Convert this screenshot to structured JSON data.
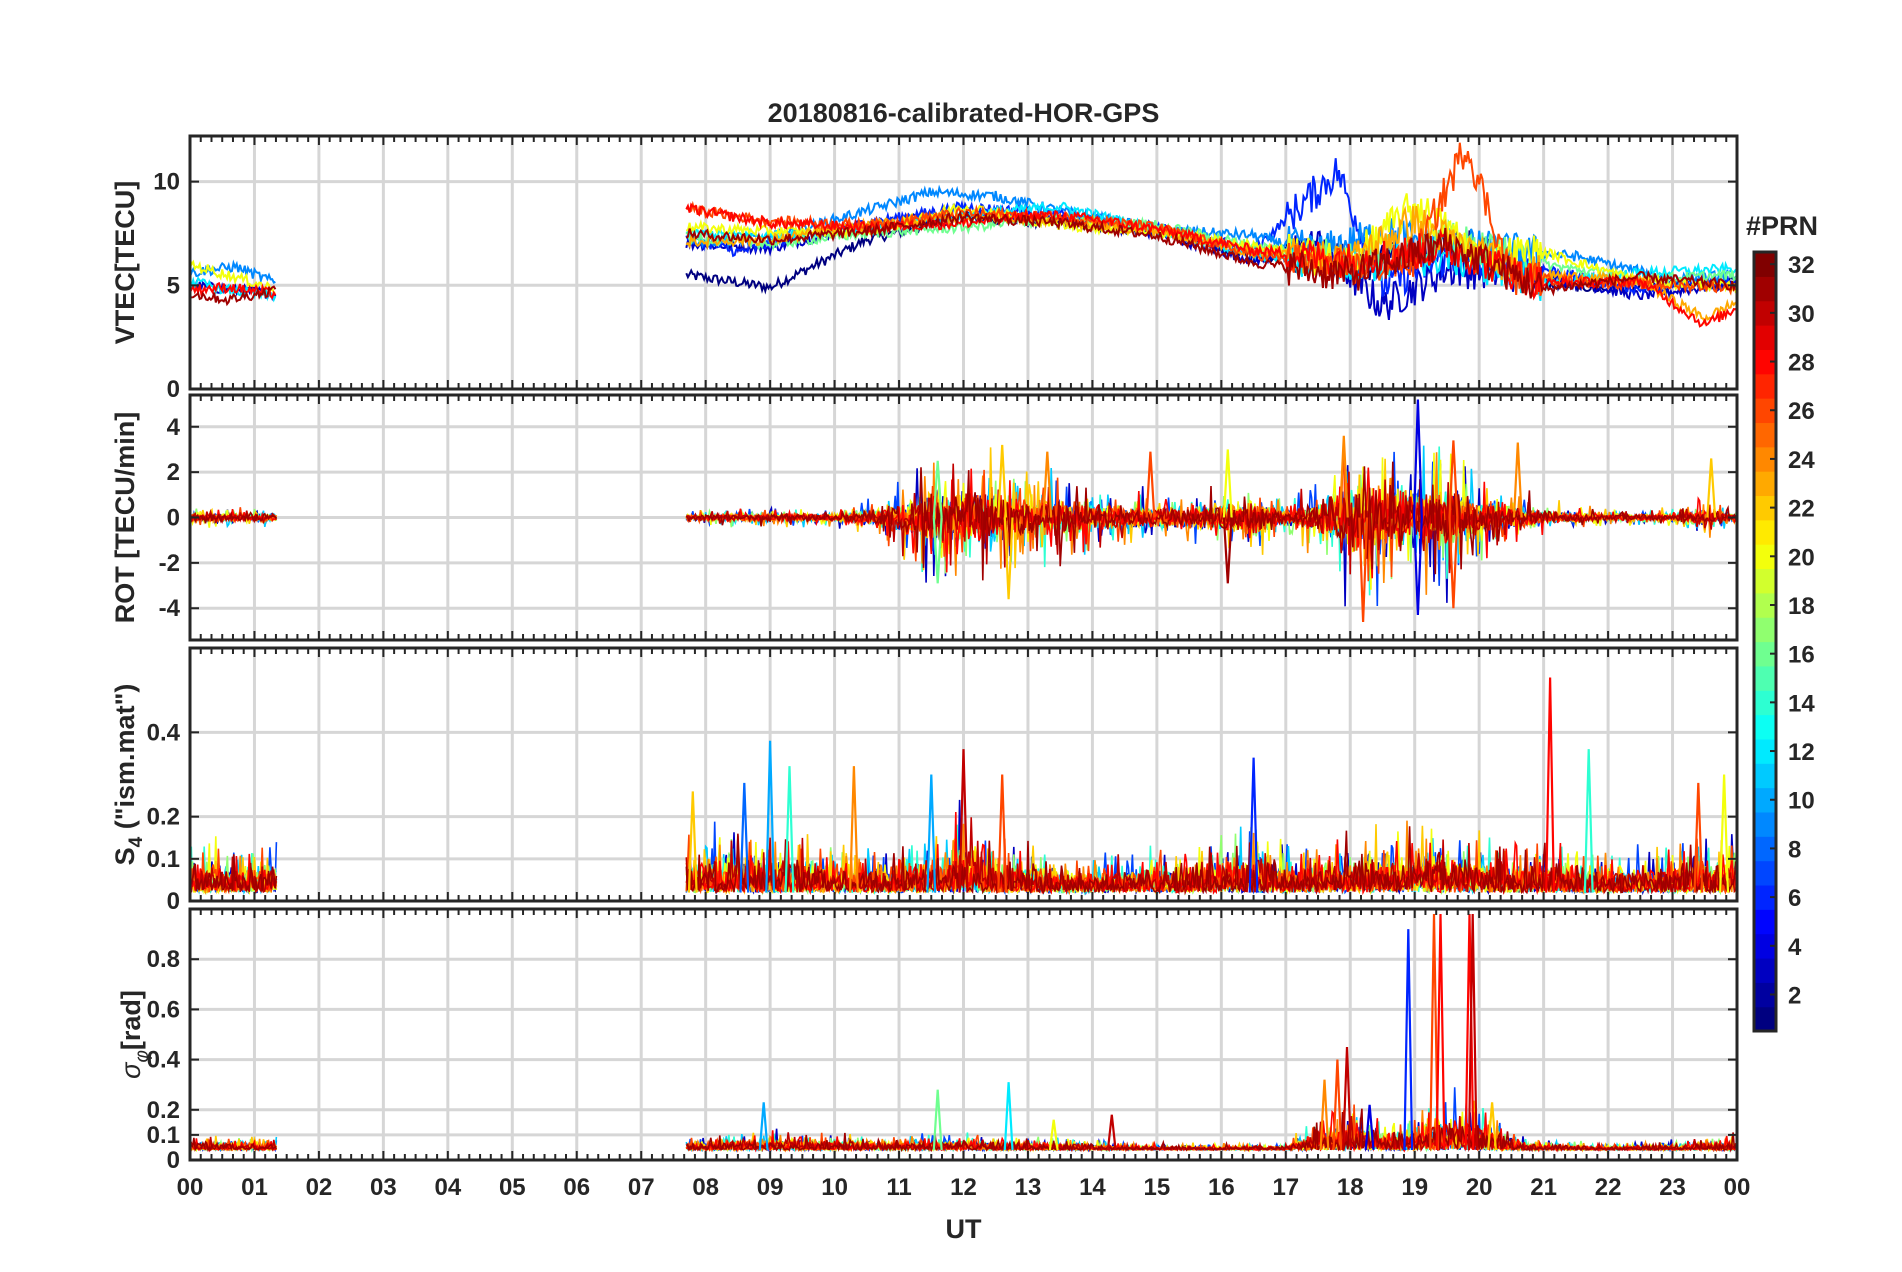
{
  "chart_data": {
    "type": "line",
    "title": "20180816-calibrated-HOR-GPS",
    "xlabel": "UT",
    "x_tick_labels": [
      "00",
      "01",
      "02",
      "03",
      "04",
      "05",
      "06",
      "07",
      "08",
      "09",
      "10",
      "11",
      "12",
      "13",
      "14",
      "15",
      "16",
      "17",
      "18",
      "19",
      "20",
      "21",
      "22",
      "23",
      "00"
    ],
    "xlim_hours": [
      0,
      24
    ],
    "grid": true,
    "colorbar": {
      "title": "#PRN",
      "range": [
        1,
        32
      ],
      "tick_values": [
        2,
        4,
        6,
        8,
        10,
        12,
        14,
        16,
        18,
        20,
        22,
        24,
        26,
        28,
        30,
        32
      ],
      "tick_labels": [
        "2",
        "4",
        "6",
        "8",
        "10",
        "12",
        "14",
        "16",
        "18",
        "20",
        "22",
        "24",
        "26",
        "28",
        "30",
        "32"
      ],
      "colormap": "jet",
      "placement": "right"
    },
    "data_gap_hours": [
      1.35,
      7.7
    ],
    "panels": [
      {
        "id": "vtec",
        "ylabel": "VTEC[TECU]",
        "ylim": [
          0,
          12.2
        ],
        "yticks": [
          0,
          5,
          10
        ],
        "ytick_labels": [
          "0",
          "5",
          "10"
        ],
        "type": "line",
        "series": [
          {
            "prn": 1,
            "x": [
              7.7,
              9.0,
              10.5,
              12.0,
              13.5,
              15.0,
              16.5,
              17.5,
              18.2,
              19.0,
              20.0,
              21.0,
              22.0,
              23.0,
              24.0
            ],
            "y": [
              5.5,
              4.9,
              7.2,
              8.3,
              8.0,
              7.6,
              6.3,
              6.6,
              5.8,
              6.6,
              6.9,
              5.1,
              4.8,
              5.0,
              5.2
            ]
          },
          {
            "prn": 3,
            "x": [
              0.0,
              0.6,
              1.35,
              7.7,
              9.0,
              10.5,
              12.0,
              13.5,
              15.0,
              16.5,
              17.5,
              18.5,
              19.5,
              21.0,
              22.5,
              24.0
            ],
            "y": [
              5.0,
              4.8,
              4.6,
              7.0,
              6.8,
              7.9,
              8.5,
              8.2,
              7.5,
              6.2,
              7.0,
              4.0,
              5.8,
              5.4,
              4.5,
              5.1
            ]
          },
          {
            "prn": 6,
            "x": [
              7.7,
              8.5,
              9.5,
              10.5,
              12.0,
              13.5,
              15.0,
              16.5,
              17.8,
              18.5,
              19.5,
              21.0,
              22.5,
              24.0
            ],
            "y": [
              7.3,
              6.6,
              7.4,
              8.0,
              8.8,
              8.4,
              7.8,
              6.7,
              10.5,
              5.0,
              6.4,
              5.8,
              4.8,
              5.3
            ]
          },
          {
            "prn": 9,
            "x": [
              0.0,
              0.7,
              1.35,
              7.7,
              9.0,
              10.5,
              11.5,
              12.5,
              13.5,
              15.0,
              16.5,
              17.5,
              18.5,
              20.0,
              21.5,
              23.0,
              24.0
            ],
            "y": [
              5.6,
              5.9,
              5.1,
              7.1,
              7.3,
              8.6,
              9.5,
              9.3,
              8.6,
              7.7,
              7.4,
              6.6,
              7.5,
              6.8,
              6.4,
              5.3,
              5.5
            ]
          },
          {
            "prn": 12,
            "x": [
              0.0,
              0.7,
              1.35,
              7.7,
              9.0,
              10.5,
              12.0,
              13.5,
              15.0,
              16.5,
              18.0,
              19.5,
              21.0,
              22.5,
              24.0
            ],
            "y": [
              5.2,
              4.7,
              4.5,
              7.5,
              7.4,
              7.7,
              8.4,
              8.8,
              7.7,
              6.5,
              5.9,
              6.4,
              5.1,
              5.6,
              5.8
            ]
          },
          {
            "prn": 16,
            "x": [
              7.7,
              9.0,
              10.5,
              12.0,
              13.5,
              15.0,
              16.5,
              18.0,
              19.5,
              21.0,
              22.5,
              24.0
            ],
            "y": [
              7.3,
              7.0,
              7.5,
              7.8,
              8.2,
              7.9,
              6.9,
              6.3,
              7.2,
              6.0,
              5.3,
              5.5
            ]
          },
          {
            "prn": 20,
            "x": [
              0.0,
              0.7,
              1.35,
              7.7,
              9.0,
              10.5,
              12.0,
              13.5,
              15.0,
              16.5,
              18.0,
              19.0,
              20.0,
              21.0,
              22.5,
              24.0
            ],
            "y": [
              6.0,
              5.4,
              4.8,
              7.8,
              7.6,
              7.6,
              8.8,
              7.9,
              7.6,
              6.9,
              6.1,
              8.9,
              6.5,
              6.6,
              5.2,
              4.9
            ]
          },
          {
            "prn": 23,
            "x": [
              7.7,
              9.0,
              10.5,
              12.0,
              13.5,
              15.0,
              16.5,
              18.0,
              19.0,
              20.0,
              21.0,
              22.5,
              23.5,
              24.0
            ],
            "y": [
              7.1,
              7.2,
              7.9,
              8.3,
              8.1,
              7.6,
              6.6,
              6.2,
              8.1,
              6.4,
              5.5,
              5.2,
              3.4,
              4.2
            ]
          },
          {
            "prn": 26,
            "x": [
              7.7,
              9.0,
              10.5,
              12.0,
              13.5,
              15.0,
              16.5,
              18.0,
              19.0,
              19.8,
              20.5,
              22.0,
              24.0
            ],
            "y": [
              8.7,
              8.1,
              7.9,
              8.5,
              8.3,
              7.8,
              6.5,
              5.8,
              6.2,
              11.8,
              5.4,
              5.1,
              4.9
            ]
          },
          {
            "prn": 28,
            "x": [
              0.0,
              0.6,
              1.35,
              7.7,
              9.0,
              10.5,
              12.0,
              13.2,
              14.0,
              15.0,
              16.5,
              18.0,
              19.5,
              21.0,
              22.5,
              23.5,
              24.0
            ],
            "y": [
              4.8,
              4.9,
              4.6,
              8.7,
              8.0,
              7.8,
              8.0,
              8.4,
              8.2,
              7.7,
              6.7,
              6.2,
              6.8,
              5.1,
              5.2,
              3.1,
              3.9
            ]
          },
          {
            "prn": 31,
            "x": [
              0.0,
              0.6,
              1.35,
              7.7,
              9.0,
              10.5,
              12.0,
              13.5,
              15.0,
              16.5,
              18.0,
              19.5,
              21.0,
              22.5,
              24.0
            ],
            "y": [
              4.6,
              4.3,
              4.8,
              7.5,
              7.2,
              7.6,
              8.3,
              8.0,
              7.4,
              6.1,
              5.5,
              7.0,
              4.8,
              5.4,
              5.0
            ]
          }
        ]
      },
      {
        "id": "rot",
        "ylabel": "ROT [TECU/min]",
        "ylim": [
          -5.4,
          5.4
        ],
        "yticks": [
          -4,
          -2,
          0,
          2,
          4
        ],
        "ytick_labels": [
          "-4",
          "-2",
          "0",
          "2",
          "4"
        ],
        "type": "line",
        "segments": [
          [
            0,
            1.35
          ],
          [
            7.7,
            24
          ]
        ],
        "noise_profile": {
          "hours": [
            0,
            1.35,
            7.7,
            9,
            10,
            10.5,
            11,
            11.5,
            12,
            12.5,
            13,
            13.5,
            14,
            15,
            16,
            16.5,
            17,
            17.5,
            18,
            18.5,
            19,
            19.5,
            20,
            20.5,
            21,
            22,
            23,
            23.5,
            24
          ],
          "amplitude_tecu_per_min": [
            0.35,
            0.35,
            0.25,
            0.35,
            0.3,
            0.6,
            1.2,
            2.4,
            2.1,
            2.4,
            1.6,
            1.7,
            1.2,
            0.9,
            1.1,
            1.8,
            0.7,
            1.4,
            3.0,
            2.8,
            2.4,
            2.6,
            1.7,
            1.1,
            0.6,
            0.3,
            0.3,
            0.8,
            0.2
          ]
        },
        "spikes": [
          {
            "x": 11.6,
            "y": 2.5,
            "prn": 16
          },
          {
            "x": 11.6,
            "y": -2.9,
            "prn": 16
          },
          {
            "x": 12.6,
            "y": 3.2,
            "prn": 22
          },
          {
            "x": 12.7,
            "y": -3.6,
            "prn": 22
          },
          {
            "x": 13.3,
            "y": 2.9,
            "prn": 24
          },
          {
            "x": 14.9,
            "y": 2.9,
            "prn": 26
          },
          {
            "x": 16.1,
            "y": 3.0,
            "prn": 20
          },
          {
            "x": 16.1,
            "y": -2.9,
            "prn": 31
          },
          {
            "x": 17.9,
            "y": 3.6,
            "prn": 24
          },
          {
            "x": 18.2,
            "y": -4.6,
            "prn": 26
          },
          {
            "x": 19.05,
            "y": 5.2,
            "prn": 4
          },
          {
            "x": 19.05,
            "y": -4.3,
            "prn": 4
          },
          {
            "x": 19.6,
            "y": 3.4,
            "prn": 26
          },
          {
            "x": 19.6,
            "y": -4.0,
            "prn": 26
          },
          {
            "x": 20.6,
            "y": 3.3,
            "prn": 24
          },
          {
            "x": 23.6,
            "y": 2.6,
            "prn": 22
          }
        ]
      },
      {
        "id": "s4",
        "ylabel": "S4 (\"ism.mat\")",
        "ylim": [
          0,
          0.6
        ],
        "yticks": [
          0,
          0.1,
          0.2,
          0.4
        ],
        "ytick_labels": [
          "0",
          "0.1",
          "0.2",
          "0.4"
        ],
        "type": "line",
        "segments": [
          [
            0,
            1.35
          ],
          [
            7.7,
            24
          ]
        ],
        "noise_profile": {
          "hours": [
            0,
            1.35,
            7.7,
            8.5,
            9.5,
            10.5,
            11.5,
            12,
            12.5,
            13,
            14,
            15,
            16,
            16.5,
            17,
            18,
            19,
            20,
            21,
            22,
            23,
            24
          ],
          "amplitude": [
            0.09,
            0.09,
            0.12,
            0.12,
            0.1,
            0.08,
            0.1,
            0.16,
            0.1,
            0.09,
            0.07,
            0.08,
            0.1,
            0.12,
            0.09,
            0.1,
            0.13,
            0.1,
            0.09,
            0.07,
            0.09,
            0.11
          ]
        },
        "spikes": [
          {
            "x": 7.8,
            "y": 0.26,
            "prn": 22
          },
          {
            "x": 8.6,
            "y": 0.28,
            "prn": 8
          },
          {
            "x": 9.0,
            "y": 0.38,
            "prn": 10
          },
          {
            "x": 9.3,
            "y": 0.32,
            "prn": 14
          },
          {
            "x": 10.3,
            "y": 0.32,
            "prn": 24
          },
          {
            "x": 11.5,
            "y": 0.3,
            "prn": 10
          },
          {
            "x": 12.0,
            "y": 0.36,
            "prn": 30
          },
          {
            "x": 12.6,
            "y": 0.3,
            "prn": 26
          },
          {
            "x": 16.5,
            "y": 0.34,
            "prn": 6
          },
          {
            "x": 21.1,
            "y": 0.53,
            "prn": 28
          },
          {
            "x": 21.7,
            "y": 0.36,
            "prn": 14
          },
          {
            "x": 23.4,
            "y": 0.28,
            "prn": 26
          },
          {
            "x": 23.8,
            "y": 0.3,
            "prn": 20
          }
        ]
      },
      {
        "id": "sigma_phi",
        "ylabel": "σφ[rad]",
        "ylim": [
          0,
          1.0
        ],
        "yticks": [
          0,
          0.1,
          0.2,
          0.4,
          0.6,
          0.8
        ],
        "ytick_labels": [
          "0",
          "0.1",
          "0.2",
          "0.4",
          "0.6",
          "0.8"
        ],
        "type": "line",
        "segments": [
          [
            0,
            1.35
          ],
          [
            7.7,
            24
          ]
        ],
        "baseline": 0.04,
        "noise_profile": {
          "hours": [
            0,
            1.35,
            7.7,
            9,
            10,
            11,
            12,
            13,
            14,
            15,
            16,
            17,
            17.5,
            18,
            18.5,
            19,
            19.5,
            20,
            20.5,
            21,
            22,
            23,
            24
          ],
          "amplitude": [
            0.04,
            0.04,
            0.04,
            0.06,
            0.05,
            0.05,
            0.05,
            0.04,
            0.03,
            0.02,
            0.02,
            0.02,
            0.1,
            0.15,
            0.08,
            0.1,
            0.18,
            0.15,
            0.05,
            0.03,
            0.02,
            0.03,
            0.05
          ]
        },
        "spikes": [
          {
            "x": 8.9,
            "y": 0.23,
            "prn": 10
          },
          {
            "x": 11.6,
            "y": 0.28,
            "prn": 16
          },
          {
            "x": 12.7,
            "y": 0.31,
            "prn": 12
          },
          {
            "x": 13.4,
            "y": 0.16,
            "prn": 20
          },
          {
            "x": 14.3,
            "y": 0.18,
            "prn": 30
          },
          {
            "x": 17.6,
            "y": 0.32,
            "prn": 24
          },
          {
            "x": 17.8,
            "y": 0.4,
            "prn": 26
          },
          {
            "x": 17.95,
            "y": 0.45,
            "prn": 30
          },
          {
            "x": 18.3,
            "y": 0.22,
            "prn": 4
          },
          {
            "x": 18.9,
            "y": 0.92,
            "prn": 6
          },
          {
            "x": 19.3,
            "y": 0.98,
            "prn": 26
          },
          {
            "x": 19.4,
            "y": 0.98,
            "prn": 28
          },
          {
            "x": 19.85,
            "y": 0.98,
            "prn": 28
          },
          {
            "x": 19.9,
            "y": 0.98,
            "prn": 30
          },
          {
            "x": 20.2,
            "y": 0.23,
            "prn": 22
          }
        ]
      }
    ]
  }
}
